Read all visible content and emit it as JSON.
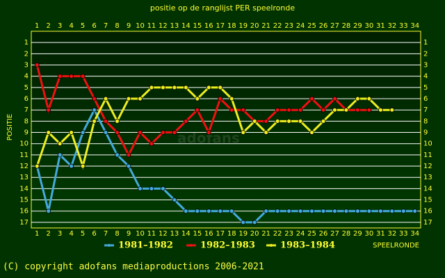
{
  "chart_data": {
    "type": "line",
    "title": "positie op de ranglijst PER speelronde",
    "y_label": "POSITIE",
    "x_label": "SPEELRONDE",
    "watermark": "adofans",
    "footer": "(C) copyright adofans mediaproductions 2006-2021",
    "x": [
      1,
      2,
      3,
      4,
      5,
      6,
      7,
      8,
      9,
      10,
      11,
      12,
      13,
      14,
      15,
      16,
      17,
      18,
      19,
      20,
      21,
      22,
      23,
      24,
      25,
      26,
      27,
      28,
      29,
      30,
      31,
      32,
      33,
      34
    ],
    "xlim": [
      0.5,
      34.5
    ],
    "xticks": [
      1,
      2,
      3,
      4,
      5,
      6,
      7,
      8,
      9,
      10,
      11,
      12,
      13,
      14,
      15,
      16,
      17,
      18,
      19,
      20,
      21,
      22,
      23,
      24,
      25,
      26,
      27,
      28,
      29,
      30,
      31,
      32,
      33,
      34
    ],
    "ylim": [
      17.5,
      0
    ],
    "yticks": [
      1,
      2,
      3,
      4,
      5,
      6,
      7,
      8,
      9,
      10,
      11,
      12,
      13,
      14,
      15,
      16,
      17
    ],
    "y_inverted": true,
    "grid": true,
    "legend": "bottom",
    "series": [
      {
        "name": "1981–1982",
        "color": "#44aadd",
        "values": [
          12,
          16,
          11,
          12,
          9,
          7,
          9,
          11,
          12,
          14,
          14,
          14,
          15,
          16,
          16,
          16,
          16,
          16,
          17,
          17,
          16,
          16,
          16,
          16,
          16,
          16,
          16,
          16,
          16,
          16,
          16,
          16,
          16,
          16
        ]
      },
      {
        "name": "1982–1983",
        "color": "#ee1111",
        "values": [
          3,
          7,
          4,
          4,
          4,
          6,
          8,
          9,
          11,
          9,
          10,
          9,
          9,
          8,
          7,
          9,
          6,
          7,
          7,
          8,
          8,
          7,
          7,
          7,
          6,
          7,
          6,
          7,
          7,
          7,
          null,
          null,
          null,
          null
        ]
      },
      {
        "name": "1983–1984",
        "color": "#eeee22",
        "values": [
          12,
          9,
          10,
          9,
          12,
          8,
          6,
          8,
          6,
          6,
          5,
          5,
          5,
          5,
          6,
          5,
          5,
          6,
          9,
          8,
          9,
          8,
          8,
          8,
          9,
          8,
          7,
          7,
          6,
          6,
          7,
          7,
          null,
          null
        ]
      }
    ]
  }
}
